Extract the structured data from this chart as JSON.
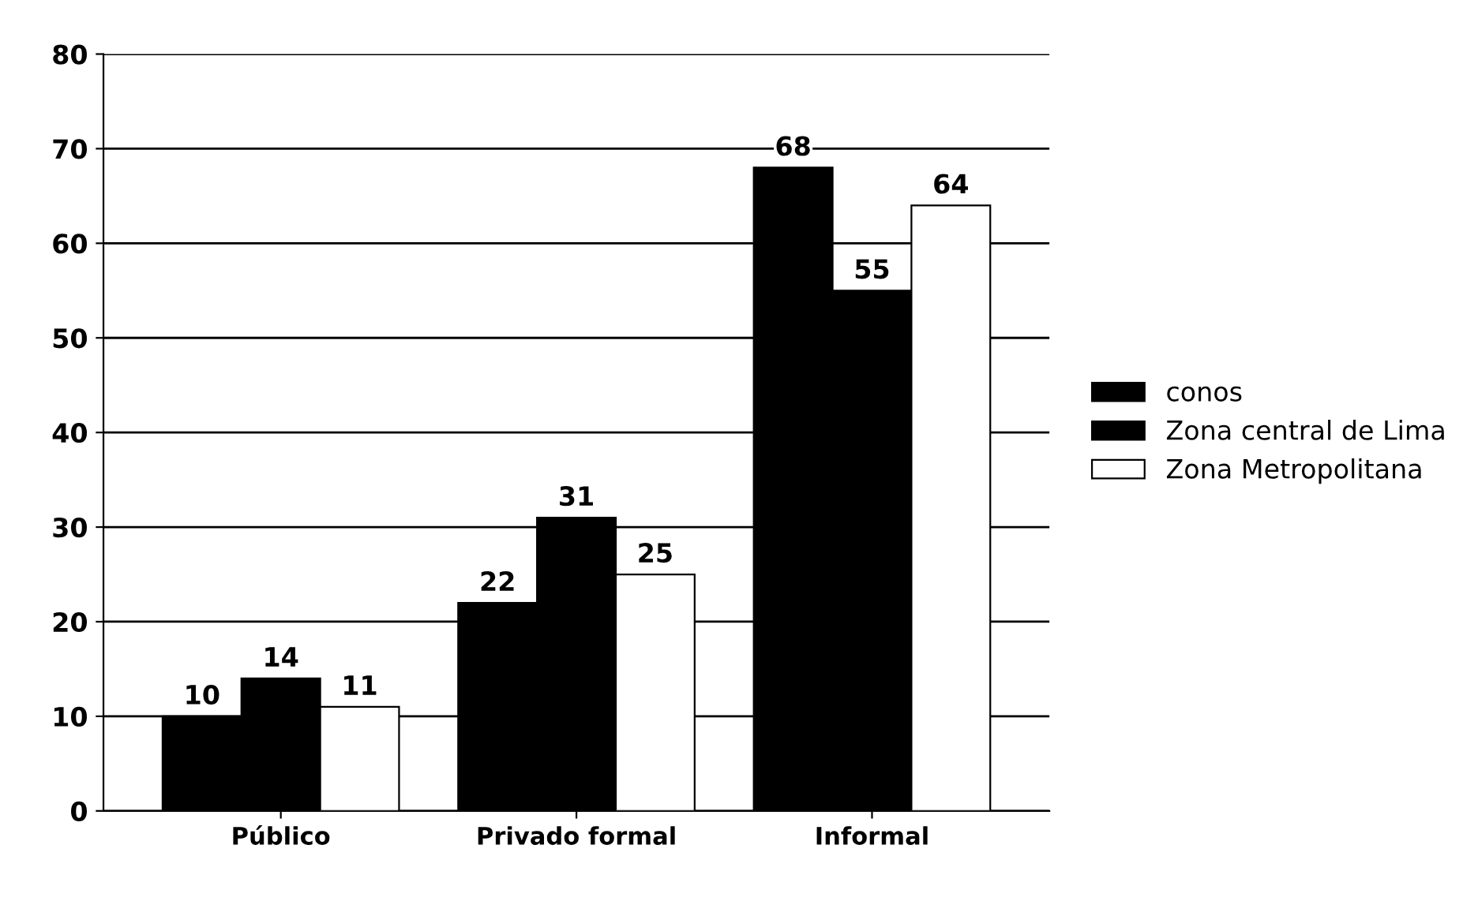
{
  "chart_data": {
    "type": "bar",
    "categories": [
      "Público",
      "Privado formal",
      "Informal"
    ],
    "series": [
      {
        "name": "conos",
        "color": "#000000",
        "values": [
          10,
          22,
          68
        ]
      },
      {
        "name": "Zona central de Lima",
        "color": "#000000",
        "values": [
          14,
          31,
          55
        ]
      },
      {
        "name": "Zona Metropolitana",
        "color": "#ffffff",
        "values": [
          11,
          25,
          64
        ]
      }
    ],
    "ylim": [
      0,
      80
    ],
    "yticks": [
      0,
      10,
      20,
      30,
      40,
      50,
      60,
      70,
      80
    ],
    "grid": "y",
    "legend": "right",
    "data_labels": true
  }
}
